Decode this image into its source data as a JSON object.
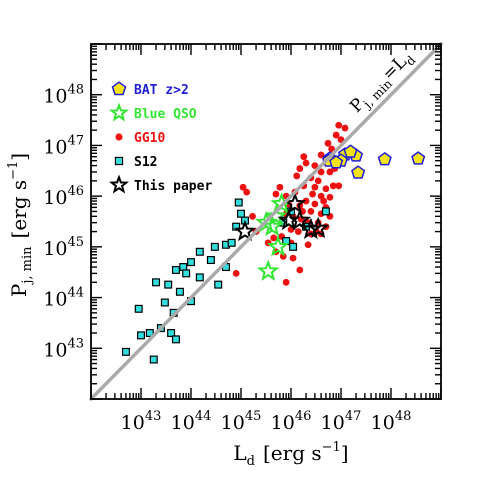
{
  "chart_data": {
    "type": "scatter",
    "xlabel": {
      "main": "L",
      "sub": "d",
      "unit": "[erg s",
      "exp": "−1",
      "close": "]"
    },
    "ylabel": {
      "main": "P",
      "sub": "j, min",
      "unit": "[erg s",
      "exp": "−1",
      "close": "]"
    },
    "x_scale": "log",
    "y_scale": "log",
    "xlim": [
      1e+42,
      1e+49
    ],
    "ylim": [
      1e+42,
      1e+49
    ],
    "x_ticks": [
      {
        "value": 1e+43,
        "base": "10",
        "exp": "43"
      },
      {
        "value": 1e+44,
        "base": "10",
        "exp": "44"
      },
      {
        "value": 1e+45,
        "base": "10",
        "exp": "45"
      },
      {
        "value": 1e+46,
        "base": "10",
        "exp": "46"
      },
      {
        "value": 1e+47,
        "base": "10",
        "exp": "47"
      },
      {
        "value": 1e+48,
        "base": "10",
        "exp": "48"
      }
    ],
    "y_ticks": [
      {
        "value": 1e+43,
        "base": "10",
        "exp": "43"
      },
      {
        "value": 1e+44,
        "base": "10",
        "exp": "44"
      },
      {
        "value": 1e+45,
        "base": "10",
        "exp": "45"
      },
      {
        "value": 1e+46,
        "base": "10",
        "exp": "46"
      },
      {
        "value": 1e+47,
        "base": "10",
        "exp": "47"
      },
      {
        "value": 1e+48,
        "base": "10",
        "exp": "48"
      }
    ],
    "reference_line": {
      "label_main": "P",
      "label_sub": "j, min",
      "label_rest": "=L",
      "label_sub2": "d",
      "color": "#aaaaaa"
    },
    "legend_position": "top-left",
    "series": [
      {
        "name": "BAT z>2",
        "marker": "pentagon",
        "fill": "#f5e31a",
        "stroke": "#1f1fd6",
        "label_color": "#1f1fd6",
        "points": [
          [
            1.2e+47,
            6.6e+46
          ],
          [
            2e+47,
            6.3e+46
          ],
          [
            7.5e+47,
            5.3e+46
          ],
          [
            3.5e+48,
            5.5e+46
          ],
          [
            6e+46,
            5.5e+46
          ],
          [
            1e+47,
            5e+46
          ],
          [
            1.55e+47,
            7.5e+46
          ],
          [
            2.2e+47,
            2.9e+46
          ],
          [
            5.8e+46,
            5e+46
          ],
          [
            8e+46,
            4.6e+46
          ]
        ]
      },
      {
        "name": "Blue QSO",
        "marker": "star-open",
        "stroke": "#33e633",
        "label_color": "#33e633",
        "points": [
          [
            3.5e+45,
            3.3e+44
          ],
          [
            4.2e+45,
            2.5e+45
          ],
          [
            5e+45,
            4e+45
          ],
          [
            5.5e+45,
            1e+45
          ],
          [
            6.5e+45,
            7e+45
          ],
          [
            3.2e+45,
            3e+45
          ]
        ]
      },
      {
        "name": "GG10",
        "marker": "circle",
        "fill": "#ee1111",
        "label_color": "#ee1111",
        "points": [
          [
            8e+46,
            1.6e+47
          ],
          [
            9e+46,
            2.5e+47
          ],
          [
            1.2e+47,
            2.2e+47
          ],
          [
            1e+47,
            1.3e+47
          ],
          [
            5.5e+46,
            1.1e+47
          ],
          [
            6.5e+46,
            8.5e+46
          ],
          [
            4e+46,
            6.5e+46
          ],
          [
            1.5e+46,
            3.5e+46
          ],
          [
            2e+46,
            4.5e+46
          ],
          [
            3e+46,
            4e+46
          ],
          [
            8e+46,
            4.5e+46
          ],
          [
            7.5e+46,
            3.5e+46
          ],
          [
            6e+46,
            3e+46
          ],
          [
            4e+46,
            3e+46
          ],
          [
            2.5e+46,
            2.3e+46
          ],
          [
            1.8e+46,
            1.6e+46
          ],
          [
            3e+46,
            1.5e+46
          ],
          [
            5e+46,
            1.4e+46
          ],
          [
            7e+46,
            1.6e+46
          ],
          [
            9e+46,
            1.6e+46
          ],
          [
            4e+46,
            1e+46
          ],
          [
            6e+46,
            9.5e+45
          ],
          [
            2e+46,
            8e+45
          ],
          [
            3e+46,
            7e+45
          ],
          [
            5e+46,
            6e+45
          ],
          [
            8e+45,
            1e+46
          ],
          [
            1.2e+46,
            1.2e+46
          ],
          [
            9e+45,
            7e+45
          ],
          [
            1.5e+46,
            6.5e+45
          ],
          [
            2.5e+46,
            5e+45
          ],
          [
            4e+46,
            4.5e+45
          ],
          [
            6e+46,
            4e+45
          ],
          [
            8e+45,
            4.5e+45
          ],
          [
            1.1e+46,
            4e+45
          ],
          [
            1.6e+46,
            3.5e+45
          ],
          [
            2.2e+46,
            3e+45
          ],
          [
            3.5e+46,
            3e+45
          ],
          [
            5e+46,
            2.5e+45
          ],
          [
            7e+45,
            3e+45
          ],
          [
            1e+46,
            2.2e+45
          ],
          [
            1.4e+46,
            2e+45
          ],
          [
            2.5e+46,
            1.8e+45
          ],
          [
            4e+46,
            1.8e+45
          ],
          [
            6.5e+45,
            1.6e+45
          ],
          [
            1e+46,
            1.2e+45
          ],
          [
            2.2e+46,
            1.1e+45
          ],
          [
            4.5e+45,
            1.5e+45
          ],
          [
            3.5e+45,
            1.2e+45
          ],
          [
            5e+45,
            8e+44
          ],
          [
            7e+45,
            6.5e+44
          ],
          [
            1.1e+46,
            6e+44
          ],
          [
            1.5e+46,
            3.5e+44
          ],
          [
            8e+45,
            2e+44
          ],
          [
            5e+45,
            1.1e+46
          ],
          [
            6e+45,
            1.5e+46
          ],
          [
            1.1e+45,
            1.5e+46
          ],
          [
            1.3e+45,
            1.2e+46
          ],
          [
            1.7e+45,
            4e+45
          ],
          [
            8e+44,
            3e+44
          ],
          [
            2e+45,
            2e+45
          ],
          [
            1.8e+46,
            6e+46
          ],
          [
            1.3e+46,
            2.5e+46
          ],
          [
            3.5e+46,
            2e+46
          ],
          [
            2.7e+46,
            1.1e+46
          ],
          [
            4.5e+46,
            8e+45
          ],
          [
            1.7e+46,
            5e+45
          ],
          [
            3.2e+46,
            2e+45
          ]
        ]
      },
      {
        "name": "S12",
        "marker": "square",
        "fill": "#33dddd",
        "stroke": "#000000",
        "label_color": "#000000",
        "points": [
          [
            5e+42,
            8.5e+42
          ],
          [
            9e+42,
            6e+43
          ],
          [
            1e+43,
            1.8e+43
          ],
          [
            1.5e+43,
            2e+43
          ],
          [
            1.8e+43,
            6e+42
          ],
          [
            2e+43,
            2e+44
          ],
          [
            2.5e+43,
            2.5e+43
          ],
          [
            3e+43,
            8e+43
          ],
          [
            3.5e+43,
            1.8e+44
          ],
          [
            4e+43,
            2e+43
          ],
          [
            4.5e+43,
            5e+43
          ],
          [
            5e+43,
            1.5e+43
          ],
          [
            5e+43,
            3.5e+44
          ],
          [
            6e+43,
            1.3e+44
          ],
          [
            7e+43,
            4e+44
          ],
          [
            8e+43,
            3e+44
          ],
          [
            1e+44,
            8.5e+43
          ],
          [
            1e+44,
            5e+44
          ],
          [
            1.5e+44,
            2.5e+44
          ],
          [
            1.5e+44,
            8e+44
          ],
          [
            2.5e+44,
            5.5e+44
          ],
          [
            3e+44,
            1e+45
          ],
          [
            3.5e+44,
            1.8e+44
          ],
          [
            5e+44,
            4e+44
          ],
          [
            5e+44,
            1.1e+45
          ],
          [
            6.5e+44,
            1.2e+45
          ],
          [
            8e+44,
            2.5e+45
          ],
          [
            9e+44,
            7.5e+45
          ],
          [
            1e+45,
            4.5e+45
          ],
          [
            1.2e+45,
            3.3e+45
          ],
          [
            1.1e+46,
            1e+45
          ],
          [
            7e+45,
            3e+45
          ],
          [
            1e+46,
            5e+45
          ],
          [
            5e+46,
            5e+45
          ],
          [
            2e+46,
            2.5e+45
          ],
          [
            8e+45,
            1.3e+45
          ]
        ]
      },
      {
        "name": "This paper",
        "marker": "star-open",
        "stroke": "#000000",
        "label_color": "#000000",
        "points": [
          [
            1.2e+45,
            2e+45
          ],
          [
            9e+45,
            3.3e+45
          ],
          [
            1.2e+46,
            7e+45
          ],
          [
            1.5e+46,
            3.3e+45
          ],
          [
            2.5e+46,
            2.2e+45
          ],
          [
            3.5e+46,
            2.3e+45
          ]
        ]
      }
    ]
  }
}
